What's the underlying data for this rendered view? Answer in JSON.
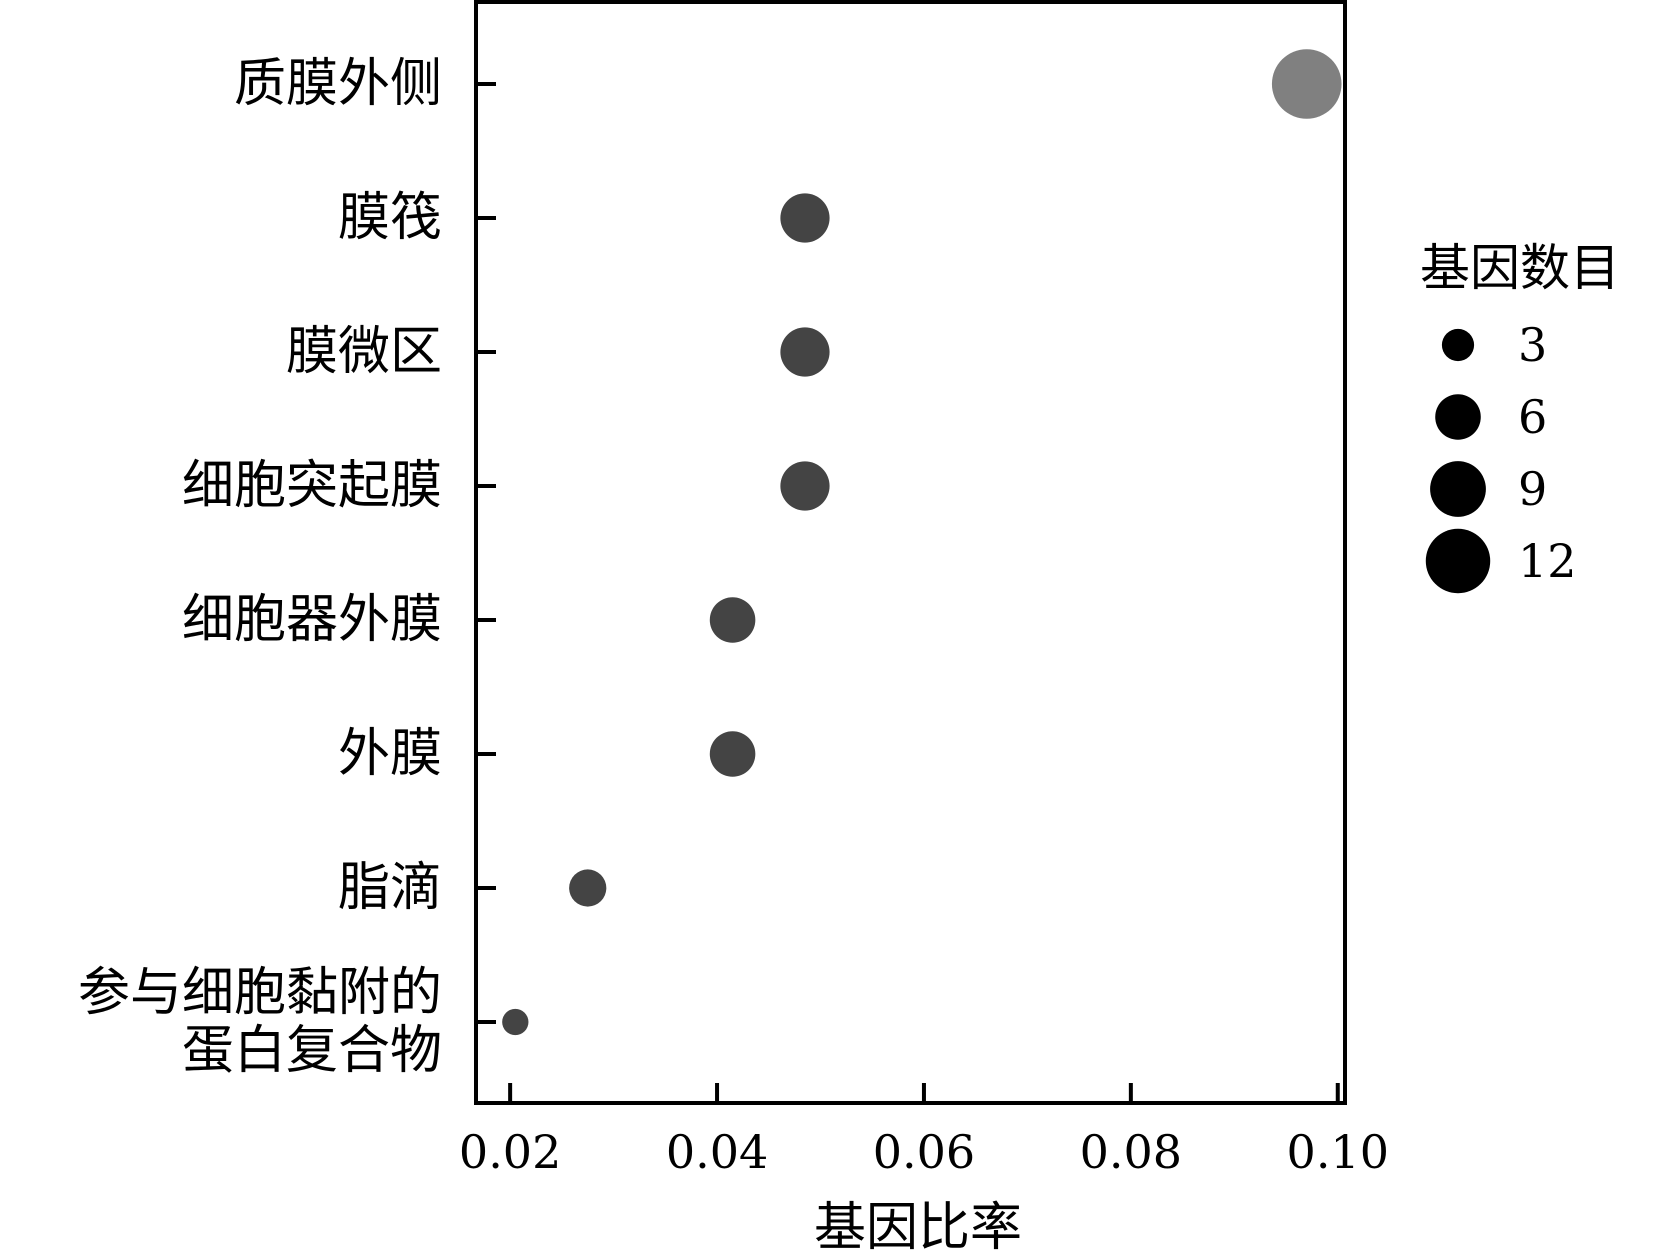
{
  "chart_data": {
    "type": "scatter",
    "title": "",
    "xlabel": "基因比率",
    "ylabel": "",
    "xlim": [
      0.0167,
      0.1007
    ],
    "x_ticks": [
      "0.02",
      "0.04",
      "0.06",
      "0.08",
      "0.10"
    ],
    "x_tick_values": [
      0.02,
      0.04,
      0.06,
      0.08,
      0.1
    ],
    "categories": [
      [
        "质膜外侧"
      ],
      [
        "膜筏"
      ],
      [
        "膜微区"
      ],
      [
        "细胞突起膜"
      ],
      [
        "细胞器外膜"
      ],
      [
        "外膜"
      ],
      [
        "脂滴"
      ],
      [
        "参与细胞黏附的",
        "蛋白复合物"
      ]
    ],
    "points": [
      {
        "category": "质膜外侧",
        "x": 0.097,
        "size": 14,
        "color": "#808080"
      },
      {
        "category": "膜筏",
        "x": 0.0485,
        "size": 7,
        "color": "#444444"
      },
      {
        "category": "膜微区",
        "x": 0.0485,
        "size": 7,
        "color": "#444444"
      },
      {
        "category": "细胞突起膜",
        "x": 0.0485,
        "size": 7,
        "color": "#444444"
      },
      {
        "category": "细胞器外膜",
        "x": 0.0415,
        "size": 6,
        "color": "#444444"
      },
      {
        "category": "外膜",
        "x": 0.0415,
        "size": 6,
        "color": "#444444"
      },
      {
        "category": "脂滴",
        "x": 0.0275,
        "size": 4,
        "color": "#444444"
      },
      {
        "category": "参与细胞黏附的蛋白复合物",
        "x": 0.0205,
        "size": 2,
        "color": "#444444"
      }
    ],
    "legend": {
      "title": "基因数目",
      "placement": "right",
      "entries": [
        {
          "label": "3",
          "size": 3
        },
        {
          "label": "6",
          "size": 6
        },
        {
          "label": "9",
          "size": 9
        },
        {
          "label": "12",
          "size": 12
        }
      ],
      "color": "#000000"
    },
    "grid": false
  }
}
